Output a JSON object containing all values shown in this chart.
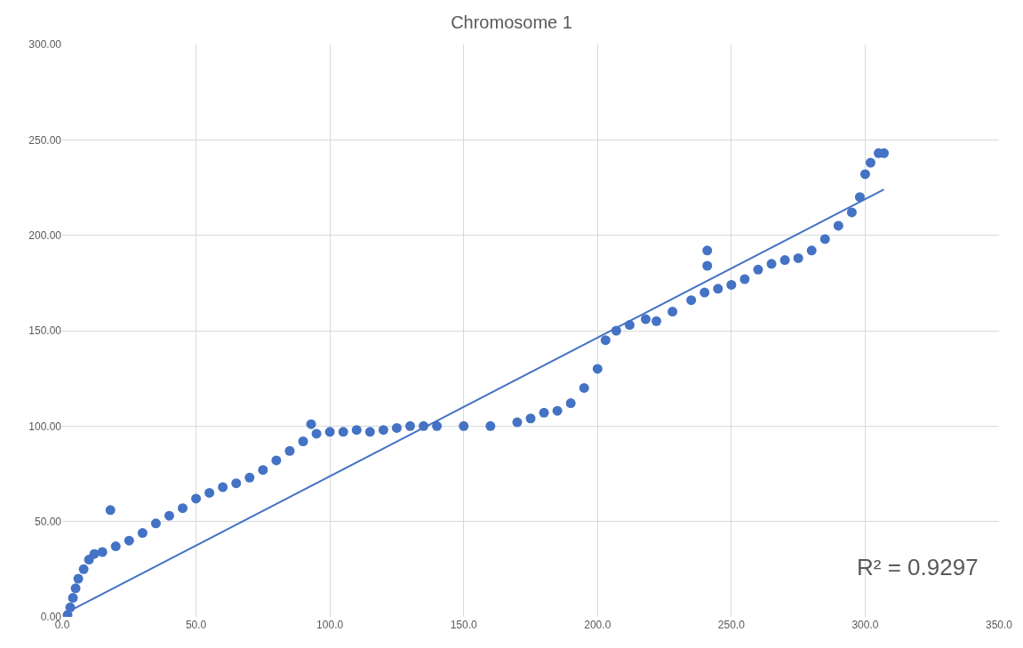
{
  "chart_data": {
    "type": "scatter",
    "title": "Chromosome 1",
    "xlim": [
      0,
      350
    ],
    "xticks": [
      {
        "value": 0,
        "label": "0.0"
      },
      {
        "value": 50,
        "label": "50.0"
      },
      {
        "value": 100,
        "label": "100.0"
      },
      {
        "value": 150,
        "label": "150.0"
      },
      {
        "value": 200,
        "label": "200.0"
      },
      {
        "value": 250,
        "label": "250.0"
      },
      {
        "value": 300,
        "label": "300.0"
      },
      {
        "value": 350,
        "label": "350.0"
      }
    ],
    "ylim": [
      0,
      300
    ],
    "yticks": [
      {
        "value": 0,
        "label": "0.00"
      },
      {
        "value": 50,
        "label": "50.00"
      },
      {
        "value": 100,
        "label": "100.00"
      },
      {
        "value": 150,
        "label": "150.00"
      },
      {
        "value": 200,
        "label": "200.00"
      },
      {
        "value": 250,
        "label": "250.00"
      },
      {
        "value": 300,
        "label": "300.00"
      }
    ],
    "grid": true,
    "marker": "circle",
    "annotations": [
      "R² = 0.9297"
    ],
    "series": [
      {
        "color": "#4472c4",
        "x": [
          2,
          3,
          4,
          5,
          6,
          8,
          10,
          12,
          15,
          18,
          20,
          25,
          30,
          35,
          40,
          45,
          50,
          55,
          60,
          65,
          70,
          75,
          80,
          85,
          90,
          93,
          95,
          100,
          105,
          110,
          115,
          120,
          125,
          130,
          135,
          140,
          150,
          160,
          170,
          175,
          180,
          185,
          190,
          195,
          200,
          203,
          207,
          212,
          218,
          222,
          228,
          235,
          240,
          241,
          241,
          245,
          250,
          255,
          260,
          265,
          270,
          275,
          280,
          285,
          290,
          295,
          298,
          300,
          302,
          305,
          307
        ],
        "values": [
          1,
          5,
          10,
          15,
          20,
          25,
          30,
          33,
          34,
          56,
          37,
          40,
          44,
          49,
          53,
          57,
          62,
          65,
          68,
          70,
          73,
          77,
          82,
          87,
          92,
          101,
          96,
          97,
          97,
          98,
          97,
          98,
          99,
          100,
          100,
          100,
          100,
          100,
          102,
          104,
          107,
          108,
          112,
          120,
          130,
          145,
          150,
          153,
          156,
          155,
          160,
          166,
          170,
          192,
          184,
          172,
          174,
          177,
          182,
          185,
          187,
          188,
          192,
          198,
          205,
          212,
          220,
          232,
          238,
          243,
          243
        ]
      },
      {
        "type": "line",
        "color": "#4472c4",
        "marker": "none",
        "x": [
          4,
          307
        ],
        "values": [
          4,
          224
        ]
      }
    ]
  }
}
